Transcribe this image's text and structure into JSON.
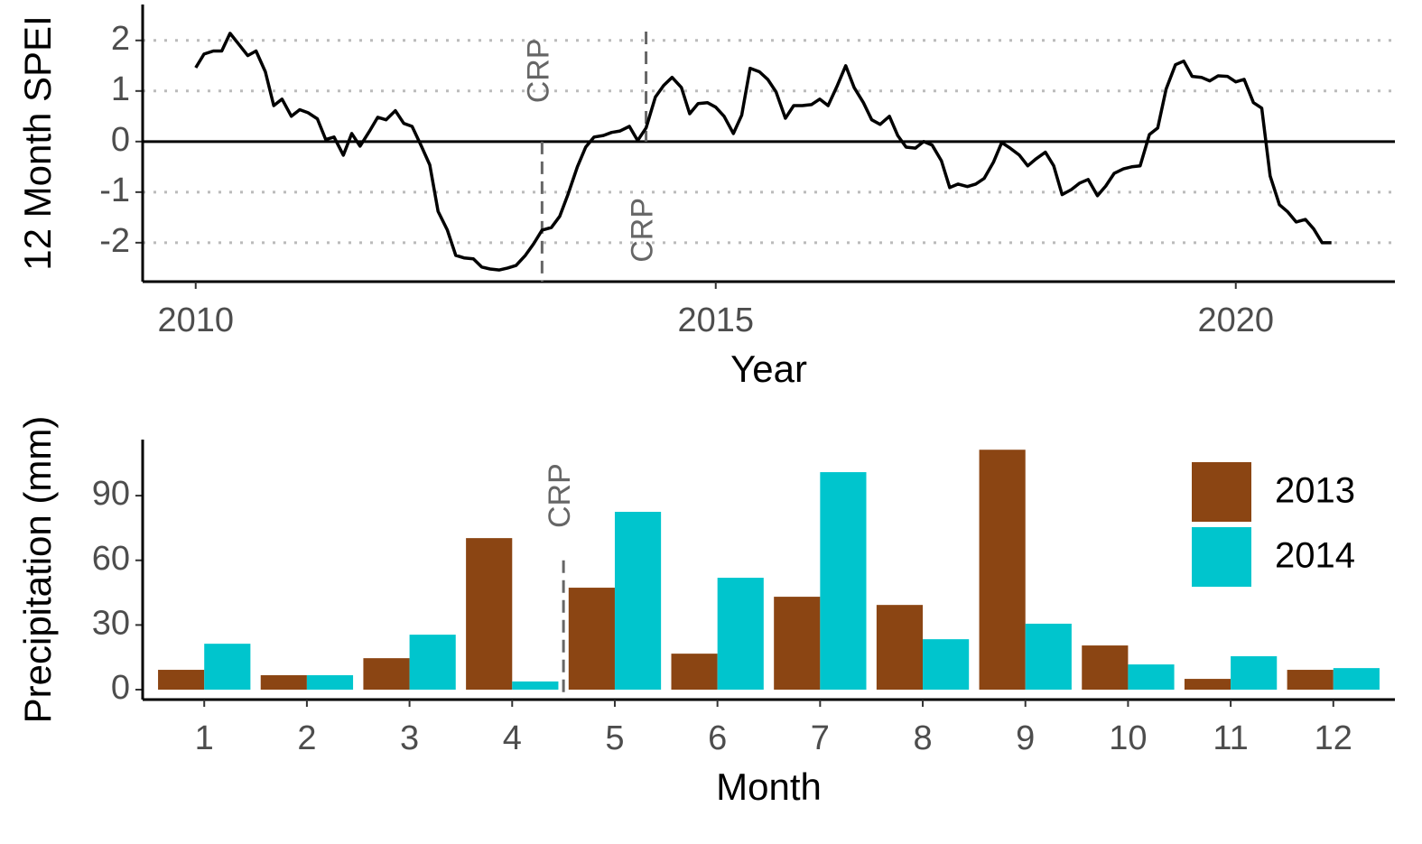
{
  "chart_data": [
    {
      "type": "line",
      "x_label": "Year",
      "y_label": "12 Month SPEI",
      "color": "#000000",
      "x": [
        2010.0,
        2010.08,
        2010.17,
        2010.25,
        2010.33,
        2010.42,
        2010.5,
        2010.58,
        2010.67,
        2010.75,
        2010.83,
        2010.92,
        2011.0,
        2011.08,
        2011.17,
        2011.25,
        2011.33,
        2011.42,
        2011.5,
        2011.58,
        2011.67,
        2011.75,
        2011.83,
        2011.92,
        2012.0,
        2012.08,
        2012.17,
        2012.25,
        2012.33,
        2012.42,
        2012.5,
        2012.58,
        2012.67,
        2012.75,
        2012.83,
        2012.92,
        2013.0,
        2013.08,
        2013.17,
        2013.25,
        2013.33,
        2013.42,
        2013.5,
        2013.58,
        2013.67,
        2013.75,
        2013.83,
        2013.92,
        2014.0,
        2014.08,
        2014.17,
        2014.25,
        2014.33,
        2014.42,
        2014.5,
        2014.58,
        2014.67,
        2014.75,
        2014.83,
        2014.92,
        2015.0,
        2015.08,
        2015.17,
        2015.25,
        2015.33,
        2015.42,
        2015.5,
        2015.58,
        2015.67,
        2015.75,
        2015.83,
        2015.92,
        2016.0,
        2016.08,
        2016.17,
        2016.25,
        2016.33,
        2016.42,
        2016.5,
        2016.58,
        2016.67,
        2016.75,
        2016.83,
        2016.92,
        2017.0,
        2017.08,
        2017.17,
        2017.25,
        2017.33,
        2017.42,
        2017.5,
        2017.58,
        2017.67,
        2017.75,
        2017.83,
        2017.92,
        2018.0,
        2018.08,
        2018.17,
        2018.25,
        2018.33,
        2018.42,
        2018.5,
        2018.58,
        2018.67,
        2018.75,
        2018.83,
        2018.92,
        2019.0,
        2019.08,
        2019.17,
        2019.25,
        2019.33,
        2019.42,
        2019.5,
        2019.58,
        2019.67,
        2019.75,
        2019.83,
        2019.92,
        2020.0,
        2020.08,
        2020.17,
        2020.25,
        2020.33,
        2020.42,
        2020.5,
        2020.58,
        2020.67,
        2020.75,
        2020.83,
        2020.92
      ],
      "values": [
        1.46,
        1.73,
        1.79,
        1.79,
        2.14,
        1.91,
        1.7,
        1.79,
        1.38,
        0.71,
        0.84,
        0.5,
        0.63,
        0.57,
        0.45,
        0.04,
        0.09,
        -0.27,
        0.16,
        -0.09,
        0.2,
        0.48,
        0.43,
        0.61,
        0.36,
        0.3,
        -0.09,
        -0.46,
        -1.38,
        -1.75,
        -2.25,
        -2.3,
        -2.32,
        -2.48,
        -2.52,
        -2.54,
        -2.5,
        -2.45,
        -2.25,
        -2.02,
        -1.75,
        -1.7,
        -1.48,
        -1.04,
        -0.5,
        -0.11,
        0.09,
        0.12,
        0.18,
        0.21,
        0.3,
        0.02,
        0.27,
        0.88,
        1.11,
        1.27,
        1.07,
        0.55,
        0.75,
        0.77,
        0.68,
        0.5,
        0.16,
        0.52,
        1.45,
        1.38,
        1.23,
        0.98,
        0.46,
        0.71,
        0.71,
        0.73,
        0.84,
        0.71,
        1.11,
        1.5,
        1.07,
        0.77,
        0.43,
        0.34,
        0.5,
        0.12,
        -0.11,
        -0.13,
        0.0,
        -0.07,
        -0.38,
        -0.91,
        -0.84,
        -0.89,
        -0.84,
        -0.73,
        -0.41,
        -0.02,
        -0.13,
        -0.27,
        -0.48,
        -0.34,
        -0.21,
        -0.48,
        -1.05,
        -0.95,
        -0.82,
        -0.75,
        -1.07,
        -0.88,
        -0.63,
        -0.54,
        -0.5,
        -0.48,
        0.14,
        0.27,
        1.04,
        1.52,
        1.59,
        1.29,
        1.27,
        1.2,
        1.3,
        1.29,
        1.18,
        1.23,
        0.77,
        0.66,
        -0.68,
        -1.25,
        -1.39,
        -1.59,
        -1.54,
        -1.73,
        -2.0,
        -2.0
      ],
      "xlim": [
        2009.49,
        2021.53
      ],
      "xticks": [
        2010,
        2015,
        2020
      ],
      "ylim": [
        -2.77,
        2.71
      ],
      "yticks": [
        -2,
        -1,
        0,
        1,
        2
      ],
      "grid": true,
      "hline": 0,
      "annotations": [
        {
          "x": 2013.33,
          "label": "CRP"
        },
        {
          "x": 2014.33,
          "label": "CRP"
        }
      ]
    },
    {
      "type": "bar",
      "x_label": "Month",
      "y_label": "Precipitation (mm)",
      "categories": [
        "1",
        "2",
        "3",
        "4",
        "5",
        "6",
        "7",
        "8",
        "9",
        "10",
        "11",
        "12"
      ],
      "series": [
        {
          "name": "2013",
          "color": "#8b4513",
          "values": [
            9.2,
            6.7,
            14.6,
            70.3,
            47.3,
            16.7,
            43.1,
            39.3,
            111.3,
            20.5,
            5.0,
            9.2
          ]
        },
        {
          "name": "2014",
          "color": "#00c5cd",
          "values": [
            21.3,
            6.7,
            25.5,
            3.8,
            82.5,
            51.9,
            100.9,
            23.4,
            30.6,
            11.7,
            15.5,
            10.0
          ]
        }
      ],
      "ylim": [
        -4.6,
        116
      ],
      "yticks": [
        0,
        30,
        60,
        90
      ],
      "legend": "top-right",
      "annotations": [
        {
          "x": 4.5,
          "label": "CRP"
        }
      ]
    }
  ]
}
